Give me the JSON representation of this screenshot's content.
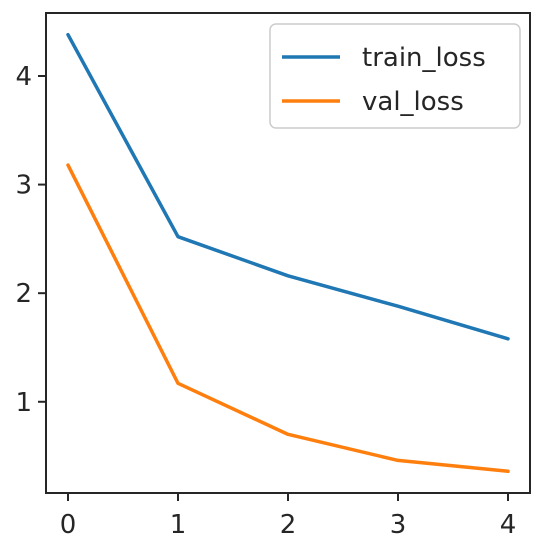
{
  "chart_data": {
    "type": "line",
    "x": [
      0,
      1,
      2,
      3,
      4
    ],
    "series": [
      {
        "name": "train_loss",
        "values": [
          4.38,
          2.52,
          2.16,
          1.88,
          1.58
        ],
        "color": "#1f77b4"
      },
      {
        "name": "val_loss",
        "values": [
          3.18,
          1.17,
          0.7,
          0.46,
          0.36
        ],
        "color": "#ff7f0e"
      }
    ],
    "xticks": [
      0,
      1,
      2,
      3,
      4
    ],
    "xtick_labels": [
      "0",
      "1",
      "2",
      "3",
      "4"
    ],
    "yticks": [
      1,
      2,
      3,
      4
    ],
    "ytick_labels": [
      "1",
      "2",
      "3",
      "4"
    ],
    "xlim": [
      -0.2,
      4.2
    ],
    "ylim": [
      0.16,
      4.58
    ],
    "grid": false,
    "legend_position": "top-right",
    "title": "",
    "xlabel": "",
    "ylabel": ""
  }
}
